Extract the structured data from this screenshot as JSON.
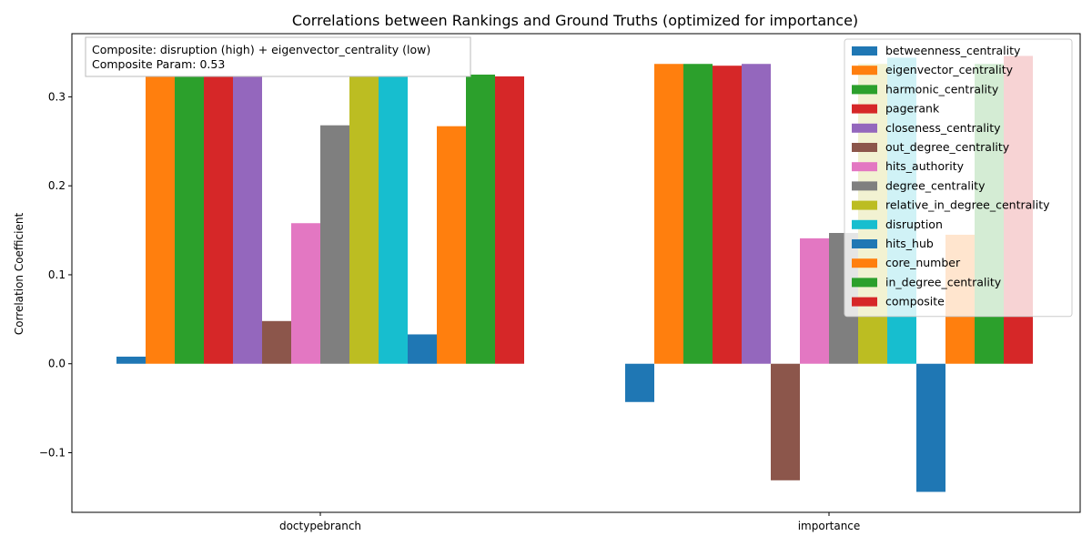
{
  "chart_data": {
    "type": "bar",
    "title": "Correlations between Rankings and Ground Truths (optimized for importance)",
    "xlabel": "",
    "ylabel": "Correlation Coefficient",
    "categories": [
      "doctypebranch",
      "importance"
    ],
    "ylim": [
      -0.167,
      0.371
    ],
    "yticks": [
      -0.1,
      0.0,
      0.1,
      0.2,
      0.3
    ],
    "ytick_labels": [
      "−0.1",
      "0.0",
      "0.1",
      "0.2",
      "0.3"
    ],
    "grid": false,
    "legend_position": "top-right",
    "annotation": {
      "line1": "Composite: disruption (high) + eigenvector_centrality (low)",
      "line2": "Composite Param: 0.53"
    },
    "series": [
      {
        "name": "betweenness_centrality",
        "color": "#1f77b4",
        "values": [
          0.008,
          -0.043
        ]
      },
      {
        "name": "eigenvector_centrality",
        "color": "#ff7f0e",
        "values": [
          0.325,
          0.337
        ]
      },
      {
        "name": "harmonic_centrality",
        "color": "#2ca02c",
        "values": [
          0.325,
          0.337
        ]
      },
      {
        "name": "pagerank",
        "color": "#d62728",
        "values": [
          0.323,
          0.335
        ]
      },
      {
        "name": "closeness_centrality",
        "color": "#9467bd",
        "values": [
          0.325,
          0.337
        ]
      },
      {
        "name": "out_degree_centrality",
        "color": "#8c564b",
        "values": [
          0.048,
          -0.131
        ]
      },
      {
        "name": "hits_authority",
        "color": "#e377c2",
        "values": [
          0.158,
          0.141
        ]
      },
      {
        "name": "degree_centrality",
        "color": "#7f7f7f",
        "values": [
          0.268,
          0.147
        ]
      },
      {
        "name": "relative_in_degree_centrality",
        "color": "#bcbd22",
        "values": [
          0.325,
          0.337
        ]
      },
      {
        "name": "disruption",
        "color": "#17becf",
        "values": [
          0.323,
          0.344
        ]
      },
      {
        "name": "hits_hub",
        "color": "#1f77b4",
        "values": [
          0.033,
          -0.144
        ]
      },
      {
        "name": "core_number",
        "color": "#ff7f0e",
        "values": [
          0.267,
          0.145
        ]
      },
      {
        "name": "in_degree_centrality",
        "color": "#2ca02c",
        "values": [
          0.325,
          0.337
        ]
      },
      {
        "name": "composite",
        "color": "#d62728",
        "values": [
          0.323,
          0.346
        ]
      }
    ]
  }
}
